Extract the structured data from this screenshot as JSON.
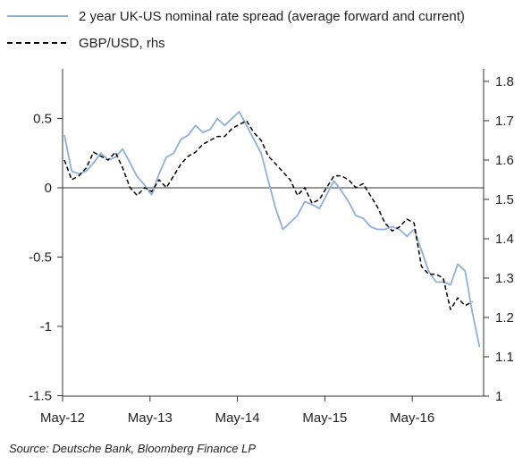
{
  "source": "Source:  Deutsche Bank, Bloomberg Finance LP",
  "colors": {
    "spread": "#8fb0d8",
    "gbpusd": "#000000",
    "axis": "#333333"
  },
  "chart_data": {
    "type": "line",
    "legend_position": "top-left",
    "grid": false,
    "x_ticks": [
      "May-12",
      "May-13",
      "May-14",
      "May-15",
      "May-16"
    ],
    "x_range": [
      "2012-05",
      "2017-02"
    ],
    "y_left": {
      "ticks": [
        "0.5",
        "0",
        "-0.5",
        "-1",
        "-1.5"
      ],
      "tick_values": [
        0.5,
        0,
        -0.5,
        -1,
        -1.5
      ],
      "range": [
        -1.5,
        0.85
      ]
    },
    "y_right": {
      "ticks": [
        "1.8",
        "1.7",
        "1.6",
        "1.5",
        "1.4",
        "1.3",
        "1.2",
        "1.1",
        "1"
      ],
      "tick_values": [
        1.8,
        1.7,
        1.6,
        1.5,
        1.4,
        1.3,
        1.2,
        1.1,
        1.0
      ],
      "range": [
        1.0,
        1.84
      ]
    },
    "series": [
      {
        "name": "2 year UK-US nominal rate spread (average forward and current)",
        "axis": "left",
        "style": "solid",
        "x": [
          "2012-05",
          "2012-06",
          "2012-07",
          "2012-08",
          "2012-09",
          "2012-10",
          "2012-11",
          "2012-12",
          "2013-01",
          "2013-02",
          "2013-03",
          "2013-04",
          "2013-05",
          "2013-06",
          "2013-07",
          "2013-08",
          "2013-09",
          "2013-10",
          "2013-11",
          "2013-12",
          "2014-01",
          "2014-02",
          "2014-03",
          "2014-04",
          "2014-05",
          "2014-06",
          "2014-07",
          "2014-08",
          "2014-09",
          "2014-10",
          "2014-11",
          "2014-12",
          "2015-01",
          "2015-02",
          "2015-03",
          "2015-04",
          "2015-05",
          "2015-06",
          "2015-07",
          "2015-08",
          "2015-09",
          "2015-10",
          "2015-11",
          "2015-12",
          "2016-01",
          "2016-02",
          "2016-03",
          "2016-04",
          "2016-05",
          "2016-06",
          "2016-07",
          "2016-08",
          "2016-09",
          "2016-10",
          "2016-11",
          "2016-12",
          "2017-01",
          "2017-02"
        ],
        "values": [
          0.38,
          0.12,
          0.1,
          0.12,
          0.18,
          0.25,
          0.2,
          0.22,
          0.28,
          0.18,
          0.08,
          0.02,
          -0.05,
          0.1,
          0.22,
          0.25,
          0.35,
          0.38,
          0.45,
          0.4,
          0.42,
          0.5,
          0.45,
          0.5,
          0.55,
          0.45,
          0.35,
          0.25,
          0.05,
          -0.15,
          -0.3,
          -0.25,
          -0.2,
          -0.1,
          -0.12,
          -0.15,
          -0.05,
          0.05,
          -0.02,
          -0.1,
          -0.2,
          -0.22,
          -0.28,
          -0.3,
          -0.3,
          -0.28,
          -0.3,
          -0.35,
          -0.3,
          -0.45,
          -0.6,
          -0.68,
          -0.68,
          -0.7,
          -0.55,
          -0.6,
          -0.9,
          -1.15
        ]
      },
      {
        "name": "GBP/USD, rhs",
        "axis": "right",
        "style": "dashed",
        "x": [
          "2012-05",
          "2012-06",
          "2012-07",
          "2012-08",
          "2012-09",
          "2012-10",
          "2012-11",
          "2012-12",
          "2013-01",
          "2013-02",
          "2013-03",
          "2013-04",
          "2013-05",
          "2013-06",
          "2013-07",
          "2013-08",
          "2013-09",
          "2013-10",
          "2013-11",
          "2013-12",
          "2014-01",
          "2014-02",
          "2014-03",
          "2014-04",
          "2014-05",
          "2014-06",
          "2014-07",
          "2014-08",
          "2014-09",
          "2014-10",
          "2014-11",
          "2014-12",
          "2015-01",
          "2015-02",
          "2015-03",
          "2015-04",
          "2015-05",
          "2015-06",
          "2015-07",
          "2015-08",
          "2015-09",
          "2015-10",
          "2015-11",
          "2015-12",
          "2016-01",
          "2016-02",
          "2016-03",
          "2016-04",
          "2016-05",
          "2016-06",
          "2016-07",
          "2016-08",
          "2016-09",
          "2016-10",
          "2016-11",
          "2016-12",
          "2017-01"
        ],
        "values": [
          1.6,
          1.55,
          1.56,
          1.58,
          1.62,
          1.61,
          1.6,
          1.62,
          1.58,
          1.53,
          1.51,
          1.53,
          1.52,
          1.55,
          1.53,
          1.56,
          1.59,
          1.61,
          1.62,
          1.64,
          1.65,
          1.66,
          1.66,
          1.68,
          1.69,
          1.7,
          1.67,
          1.65,
          1.61,
          1.59,
          1.57,
          1.55,
          1.51,
          1.53,
          1.49,
          1.5,
          1.53,
          1.56,
          1.56,
          1.55,
          1.53,
          1.54,
          1.51,
          1.48,
          1.44,
          1.42,
          1.43,
          1.45,
          1.44,
          1.33,
          1.31,
          1.31,
          1.3,
          1.22,
          1.25,
          1.23,
          1.24
        ]
      }
    ]
  }
}
